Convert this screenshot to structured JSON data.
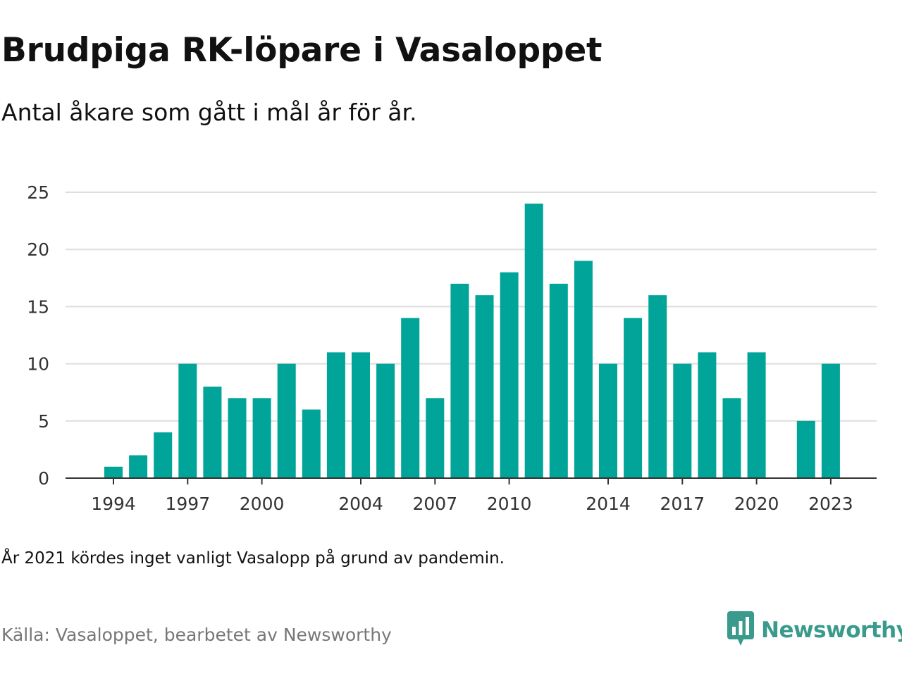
{
  "title": "Brudpiga RK-löpare i Vasaloppet",
  "subtitle": "Antal åkare som gått i mål år för år.",
  "note": "År 2021 kördes inget vanligt Vasalopp på grund av pandemin.",
  "source": "Källa: Vasaloppet, bearbetet av Newsworthy",
  "brand": {
    "name": "Newsworthy",
    "icon": "newsworthy-logo-icon"
  },
  "colors": {
    "bar": "#00a499",
    "grid": "#dddddd",
    "axis": "#333333",
    "brand": "#3a9a8c"
  },
  "chart_data": {
    "type": "bar",
    "title": "",
    "xlabel": "",
    "ylabel": "",
    "x": [
      1994,
      1995,
      1996,
      1997,
      1998,
      1999,
      2000,
      2001,
      2002,
      2003,
      2004,
      2005,
      2006,
      2007,
      2008,
      2009,
      2010,
      2011,
      2012,
      2013,
      2014,
      2015,
      2016,
      2017,
      2018,
      2019,
      2020,
      2021,
      2022,
      2023
    ],
    "values": [
      1,
      2,
      4,
      10,
      8,
      7,
      7,
      10,
      6,
      11,
      11,
      10,
      14,
      7,
      17,
      16,
      18,
      24,
      17,
      19,
      10,
      14,
      16,
      10,
      11,
      7,
      11,
      null,
      5,
      10
    ],
    "x_tick_labels": [
      "1994",
      "1997",
      "2000",
      "2004",
      "2007",
      "2010",
      "2014",
      "2017",
      "2020",
      "2023"
    ],
    "y_ticks": [
      0,
      5,
      10,
      15,
      20,
      25
    ],
    "ylim": [
      0,
      25
    ],
    "grid": true,
    "legend": "none"
  }
}
